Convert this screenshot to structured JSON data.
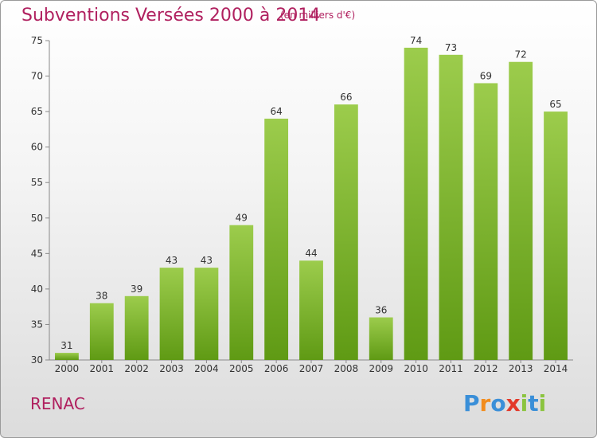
{
  "title": "Subventions Versées 2000 à 2014",
  "subtitle": "(en milliers d'€)",
  "commune": "RENAC",
  "logo": {
    "text": "Proxiti",
    "letters": [
      {
        "ch": "P",
        "color": "#3a8fd8"
      },
      {
        "ch": "r",
        "color": "#f28c1c"
      },
      {
        "ch": "o",
        "color": "#3a8fd8"
      },
      {
        "ch": "x",
        "color": "#e3392a"
      },
      {
        "ch": "i",
        "color": "#8bc43f"
      },
      {
        "ch": "t",
        "color": "#3a8fd8"
      },
      {
        "ch": "i",
        "color": "#8bc43f"
      }
    ]
  },
  "chart_data": {
    "type": "bar",
    "title": "Subventions Versées 2000 à 2014",
    "subtitle": "(en milliers d'€)",
    "categories": [
      "2000",
      "2001",
      "2002",
      "2003",
      "2004",
      "2005",
      "2006",
      "2007",
      "2008",
      "2009",
      "2010",
      "2011",
      "2012",
      "2013",
      "2014"
    ],
    "values": [
      31,
      38,
      39,
      43,
      43,
      49,
      64,
      44,
      66,
      36,
      74,
      73,
      69,
      72,
      65
    ],
    "ylim": [
      30,
      75
    ],
    "yticks": [
      30,
      35,
      40,
      45,
      50,
      55,
      60,
      65,
      70,
      75
    ],
    "grid": false,
    "bar_color_top": "#9ccc4c",
    "bar_color_bottom": "#5f9a14",
    "xlabel": "",
    "ylabel": ""
  }
}
